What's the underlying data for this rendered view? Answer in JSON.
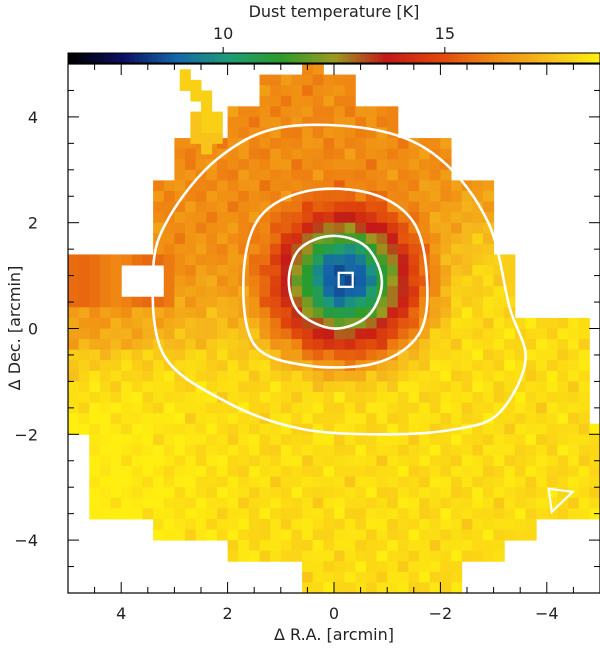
{
  "chart_data": {
    "type": "heatmap",
    "title": "",
    "colorbar": {
      "label": "Dust temperature [K]",
      "ticks": [
        10,
        15
      ],
      "range": [
        6.5,
        18.5
      ],
      "colormap": [
        "#000000",
        "#0b1060",
        "#1565a8",
        "#1d9c78",
        "#2a9c2a",
        "#9a9a20",
        "#c41818",
        "#e0460c",
        "#ef8712",
        "#f6ba1c",
        "#ffee10"
      ]
    },
    "xlabel": "Δ R.A. [arcmin]",
    "ylabel": "Δ Dec. [arcmin]",
    "xlim": [
      5,
      -5
    ],
    "ylim": [
      -5,
      5
    ],
    "xticks": [
      4,
      2,
      0,
      -2,
      -4
    ],
    "xtick_labels": [
      "4",
      "2",
      "0",
      "−2",
      "−4"
    ],
    "yticks": [
      4,
      2,
      0,
      -2,
      -4
    ],
    "ytick_labels": [
      "4",
      "2",
      "0",
      "−2",
      "−4"
    ],
    "peak_temperature_region": {
      "x": -0.2,
      "y": 0.95,
      "value_K": 8.5
    },
    "contours": [
      {
        "name": "outer",
        "points": [
          [
            3.4,
            1.1
          ],
          [
            3.1,
            2.1
          ],
          [
            2.2,
            3.2
          ],
          [
            1.0,
            3.8
          ],
          [
            -0.8,
            3.75
          ],
          [
            -2.0,
            3.2
          ],
          [
            -2.9,
            2.0
          ],
          [
            -3.3,
            0.4
          ],
          [
            -3.6,
            -0.6
          ],
          [
            -3.1,
            -1.6
          ],
          [
            -2.3,
            -1.9
          ],
          [
            -1.0,
            -2.0
          ],
          [
            0.6,
            -1.9
          ],
          [
            2.0,
            -1.4
          ],
          [
            3.2,
            -0.5
          ]
        ]
      },
      {
        "name": "middle",
        "points": [
          [
            1.7,
            1.0
          ],
          [
            1.4,
            2.1
          ],
          [
            0.5,
            2.6
          ],
          [
            -0.7,
            2.55
          ],
          [
            -1.5,
            2.0
          ],
          [
            -1.75,
            0.9
          ],
          [
            -1.6,
            -0.1
          ],
          [
            -0.8,
            -0.65
          ],
          [
            0.5,
            -0.7
          ],
          [
            1.5,
            -0.3
          ]
        ]
      },
      {
        "name": "inner",
        "points": [
          [
            0.85,
            0.9
          ],
          [
            0.65,
            1.5
          ],
          [
            0.05,
            1.75
          ],
          [
            -0.6,
            1.55
          ],
          [
            -0.9,
            0.9
          ],
          [
            -0.65,
            0.25
          ],
          [
            0.0,
            0.0
          ],
          [
            0.65,
            0.3
          ]
        ]
      }
    ],
    "marker": {
      "shape": "square",
      "x": -0.22,
      "y": 0.92
    },
    "beam_marker": {
      "shape": "triangle",
      "x": -4.3,
      "y": -3.2
    },
    "grid": false
  }
}
